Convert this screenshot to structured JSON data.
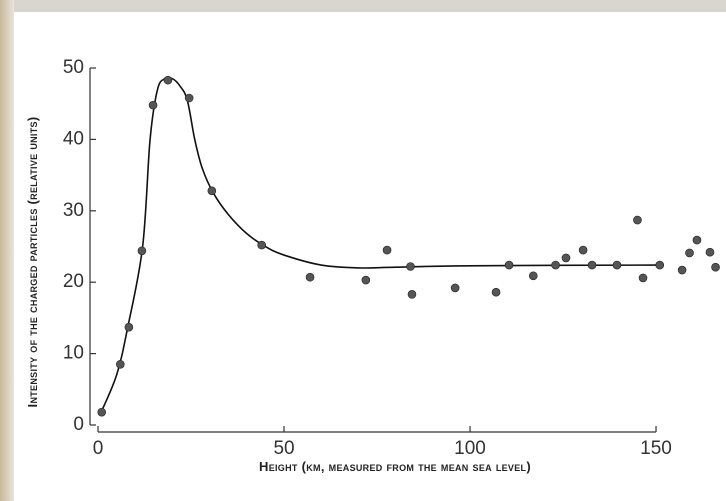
{
  "chart_data": {
    "type": "scatter",
    "x_label": "Height (km, measured from the mean sea level)",
    "y_label": "Intensity of the charged particles (relative units)",
    "x": [
      1,
      6,
      8.3,
      11.8,
      14.8,
      18.8,
      24.5,
      30.6,
      44,
      57,
      72,
      77.7,
      84,
      84.4,
      96,
      107,
      110.5,
      117,
      123,
      125.8,
      130.4,
      132.8,
      139.5,
      145,
      146.5,
      151,
      157,
      159,
      161,
      164.5,
      166
    ],
    "y": [
      1.8,
      8.5,
      13.7,
      24.4,
      44.8,
      48.3,
      45.8,
      32.8,
      25.2,
      20.7,
      20.3,
      24.5,
      22.2,
      18.3,
      19.2,
      18.6,
      22.4,
      20.9,
      22.4,
      23.4,
      24.5,
      22.4,
      22.4,
      28.7,
      20.6,
      22.4,
      21.7,
      24.1,
      25.9,
      24.2,
      22.1
    ],
    "color": "#555555",
    "curve": {
      "x": [
        0.5,
        5,
        8,
        12,
        14,
        16,
        18,
        20,
        22,
        24,
        26,
        28,
        31,
        35,
        40,
        45,
        50,
        60,
        70,
        80,
        100,
        150
      ],
      "y": [
        1.4,
        7,
        13.7,
        25,
        40,
        47,
        48.5,
        48.5,
        47.5,
        45.5,
        40,
        36,
        32.5,
        29.5,
        26.8,
        25,
        23.8,
        22.4,
        22,
        22.1,
        22.3,
        22.4
      ],
      "color": "#111111"
    },
    "xlim": [
      0,
      168
    ],
    "ylim": [
      0,
      50
    ],
    "xticks": [
      0,
      50,
      100,
      150
    ],
    "yticks": [
      0,
      10,
      20,
      30,
      40,
      50
    ]
  }
}
